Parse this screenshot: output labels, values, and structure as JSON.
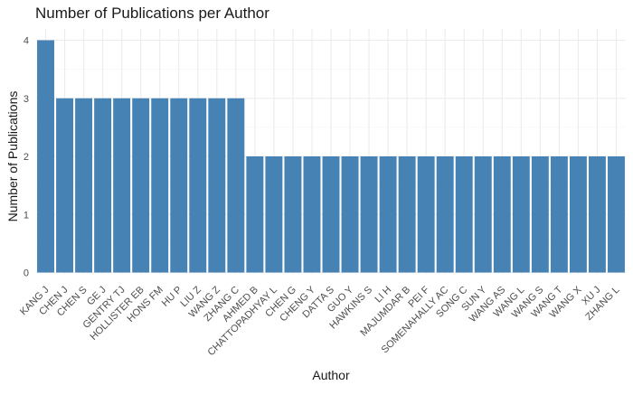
{
  "chart_data": {
    "type": "bar",
    "title": "Number of Publications per Author",
    "xlabel": "Author",
    "ylabel": "Number of Publications",
    "categories": [
      "KANG J",
      "CHEN J",
      "CHEN S",
      "GE J",
      "GENTRY TJ",
      "HOLLISTER EB",
      "HONS FM",
      "HU P",
      "LIU Z",
      "WANG Z",
      "ZHANG C",
      "AHMED B",
      "CHATTOPADHYAY L",
      "CHEN G",
      "CHENG Y",
      "DATTA S",
      "GUO Y",
      "HAWKINS S",
      "LI H",
      "MAJUMDAR B",
      "PEI F",
      "SOMENAHALLY AC",
      "SONG C",
      "SUN Y",
      "WANG AS",
      "WANG L",
      "WANG S",
      "WANG T",
      "WANG X",
      "XU J",
      "ZHANG L"
    ],
    "values": [
      4,
      3,
      3,
      3,
      3,
      3,
      3,
      3,
      3,
      3,
      3,
      2,
      2,
      2,
      2,
      2,
      2,
      2,
      2,
      2,
      2,
      2,
      2,
      2,
      2,
      2,
      2,
      2,
      2,
      2,
      2
    ],
    "ylim": [
      0,
      4
    ],
    "yticks": [
      "0",
      "1",
      "2",
      "3",
      "4"
    ],
    "grid": true,
    "bar_color": "#4682B4"
  }
}
